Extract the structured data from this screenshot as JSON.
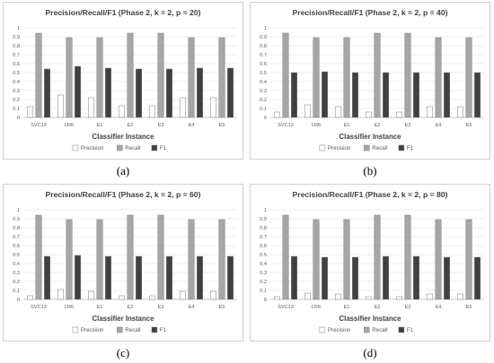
{
  "figure": {
    "panel_labels": [
      "(a)",
      "(b)",
      "(c)",
      "(d)"
    ]
  },
  "chart_data": [
    {
      "type": "bar",
      "title": "Precision/Recall/F1 (Phase 2, k = 2, p = 20)",
      "xlabel": "Classifier Instance",
      "ylabel": "",
      "ylim": [
        0,
        1
      ],
      "yticks": [
        "0",
        "0.1",
        "0.2",
        "0.3",
        "0.4",
        "0.5",
        "0.6",
        "0.7",
        "0.8",
        "0.9",
        "1"
      ],
      "grid": true,
      "legend_position": "bottom",
      "categories": [
        "SVC13",
        "LR6",
        "E1",
        "E2",
        "E3",
        "E4",
        "E5"
      ],
      "series": [
        {
          "name": "Precision",
          "color": "#ffffff",
          "values": [
            0.12,
            0.25,
            0.22,
            0.13,
            0.13,
            0.22,
            0.22
          ]
        },
        {
          "name": "Recall",
          "color": "#a6a6a6",
          "values": [
            0.94,
            0.89,
            0.89,
            0.94,
            0.94,
            0.89,
            0.89
          ]
        },
        {
          "name": "F1",
          "color": "#404040",
          "values": [
            0.54,
            0.57,
            0.55,
            0.54,
            0.54,
            0.55,
            0.55
          ]
        }
      ]
    },
    {
      "type": "bar",
      "title": "Precision/Recall/F1 (Phase 2, k = 2, p = 40)",
      "xlabel": "Classifier Instance",
      "ylabel": "",
      "ylim": [
        0,
        1
      ],
      "yticks": [
        "0",
        "0.1",
        "0.2",
        "0.3",
        "0.4",
        "0.5",
        "0.6",
        "0.7",
        "0.8",
        "0.9",
        "1"
      ],
      "grid": true,
      "legend_position": "bottom",
      "categories": [
        "SVC13",
        "LR6",
        "E1",
        "E2",
        "E3",
        "E4",
        "E5"
      ],
      "series": [
        {
          "name": "Precision",
          "color": "#ffffff",
          "values": [
            0.06,
            0.14,
            0.12,
            0.06,
            0.06,
            0.12,
            0.12
          ]
        },
        {
          "name": "Recall",
          "color": "#a6a6a6",
          "values": [
            0.94,
            0.89,
            0.89,
            0.94,
            0.94,
            0.89,
            0.89
          ]
        },
        {
          "name": "F1",
          "color": "#404040",
          "values": [
            0.5,
            0.51,
            0.5,
            0.5,
            0.5,
            0.5,
            0.5
          ]
        }
      ]
    },
    {
      "type": "bar",
      "title": "Precision/Recall/F1 (Phase 2, k = 2, p = 60)",
      "xlabel": "Classifier Instance",
      "ylabel": "",
      "ylim": [
        0,
        1
      ],
      "yticks": [
        "0",
        "0.1",
        "0.2",
        "0.3",
        "0.4",
        "0.5",
        "0.6",
        "0.7",
        "0.8",
        "0.9",
        "1"
      ],
      "grid": true,
      "legend_position": "bottom",
      "categories": [
        "SVC13",
        "LR6",
        "E1",
        "E2",
        "E3",
        "E4",
        "E5"
      ],
      "series": [
        {
          "name": "Precision",
          "color": "#ffffff",
          "values": [
            0.04,
            0.11,
            0.09,
            0.04,
            0.04,
            0.09,
            0.09
          ]
        },
        {
          "name": "Recall",
          "color": "#a6a6a6",
          "values": [
            0.94,
            0.89,
            0.89,
            0.94,
            0.94,
            0.89,
            0.89
          ]
        },
        {
          "name": "F1",
          "color": "#404040",
          "values": [
            0.48,
            0.49,
            0.48,
            0.48,
            0.48,
            0.48,
            0.48
          ]
        }
      ]
    },
    {
      "type": "bar",
      "title": "Precision/Recall/F1 (Phase 2, k = 2, p = 80)",
      "xlabel": "Classifier Instance",
      "ylabel": "",
      "ylim": [
        0,
        1
      ],
      "yticks": [
        "0",
        "0.1",
        "0.2",
        "0.3",
        "0.4",
        "0.5",
        "0.6",
        "0.7",
        "0.8",
        "0.9",
        "1"
      ],
      "grid": true,
      "legend_position": "bottom",
      "categories": [
        "SVC13",
        "LR6",
        "E1",
        "E2",
        "E3",
        "E4",
        "E5"
      ],
      "series": [
        {
          "name": "Precision",
          "color": "#ffffff",
          "values": [
            0.03,
            0.07,
            0.06,
            0.03,
            0.03,
            0.06,
            0.06
          ]
        },
        {
          "name": "Recall",
          "color": "#a6a6a6",
          "values": [
            0.94,
            0.89,
            0.89,
            0.94,
            0.94,
            0.89,
            0.89
          ]
        },
        {
          "name": "F1",
          "color": "#404040",
          "values": [
            0.48,
            0.47,
            0.47,
            0.48,
            0.48,
            0.47,
            0.47
          ]
        }
      ]
    }
  ]
}
